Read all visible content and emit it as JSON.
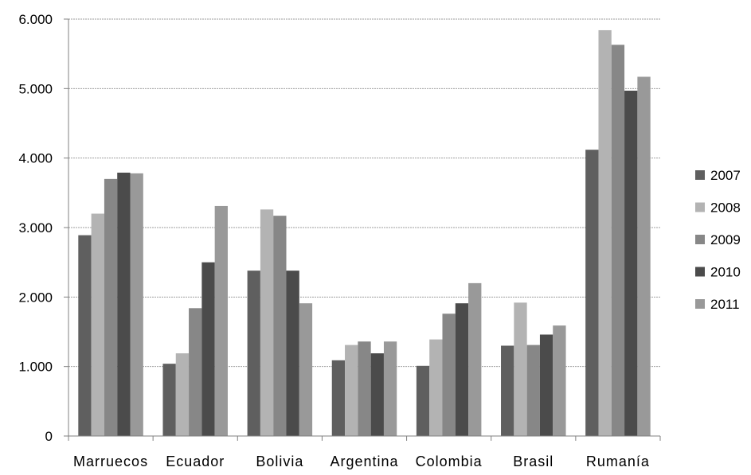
{
  "chart_data": {
    "type": "bar",
    "categories": [
      "Marruecos",
      "Ecuador",
      "Bolivia",
      "Argentina",
      "Colombia",
      "Brasil",
      "Rumanía"
    ],
    "series": [
      {
        "name": "2007",
        "values": [
          2890,
          1040,
          2380,
          1090,
          1010,
          1300,
          4120
        ]
      },
      {
        "name": "2008",
        "values": [
          3200,
          1190,
          3260,
          1310,
          1390,
          1920,
          5840
        ]
      },
      {
        "name": "2009",
        "values": [
          3700,
          1840,
          3170,
          1360,
          1760,
          1310,
          5630
        ]
      },
      {
        "name": "2010",
        "values": [
          3790,
          2500,
          2380,
          1190,
          1910,
          1460,
          4970
        ]
      },
      {
        "name": "2011",
        "values": [
          3780,
          3310,
          1910,
          1360,
          2200,
          1590,
          5170
        ]
      }
    ],
    "y_ticks": [
      "0",
      "1.000",
      "2.000",
      "3.000",
      "4.000",
      "5.000",
      "6.000"
    ],
    "ylim": [
      0,
      6000
    ],
    "grid": true,
    "legend_position": "right",
    "colors": {
      "2007": "#5f5f5f",
      "2008": "#b3b3b3",
      "2009": "#878787",
      "2010": "#4b4b4b",
      "2011": "#999999",
      "gridline": "#9e9e9e",
      "axis": "#808080"
    }
  }
}
